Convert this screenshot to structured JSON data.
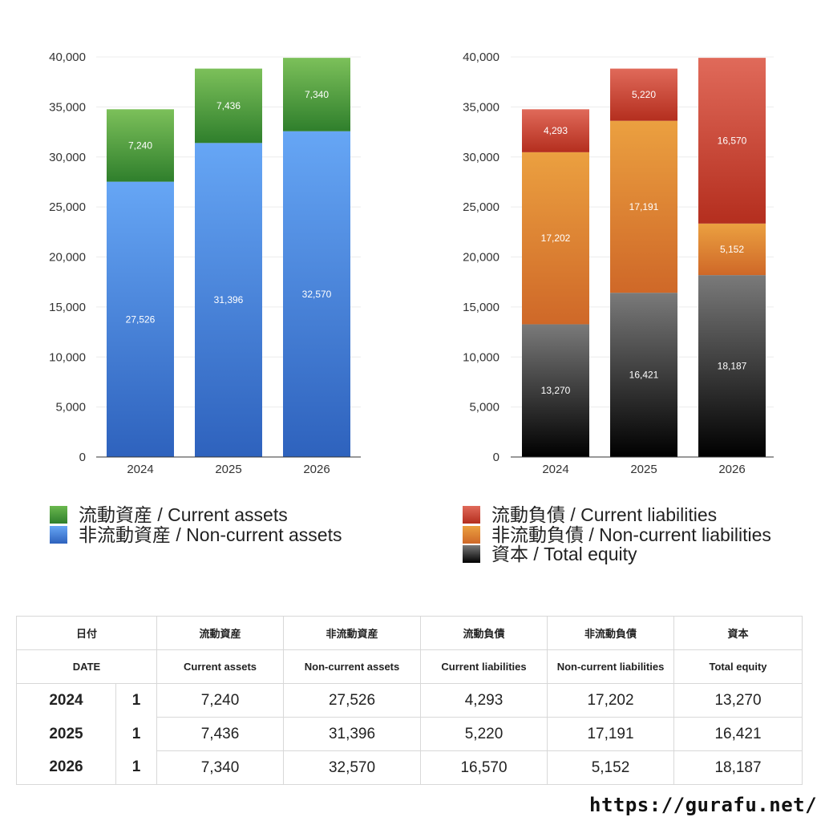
{
  "chart_data": [
    {
      "type": "bar",
      "stacked": true,
      "categories": [
        "2024",
        "2025",
        "2026"
      ],
      "series": [
        {
          "name": "非流動資産 / Non-current assets",
          "values": [
            27526,
            31396,
            32570
          ],
          "color": "#4a86d8"
        },
        {
          "name": "流動資産 / Current assets",
          "values": [
            7240,
            7436,
            7340
          ],
          "color": "#4a9a3c"
        }
      ],
      "ylim": [
        0,
        40000
      ],
      "yticks": [
        "0",
        "5,000",
        "10,000",
        "15,000",
        "20,000",
        "25,000",
        "30,000",
        "35,000",
        "40,000"
      ],
      "grid": true,
      "legend": "bottom",
      "title": "",
      "xlabel": "",
      "ylabel": ""
    },
    {
      "type": "bar",
      "stacked": true,
      "categories": [
        "2024",
        "2025",
        "2026"
      ],
      "series": [
        {
          "name": "資本 / Total equity",
          "values": [
            13270,
            16421,
            18187
          ],
          "color": "#3a3a3a"
        },
        {
          "name": "非流動負債 / Non-current liabilities",
          "values": [
            17202,
            17191,
            5152
          ],
          "color": "#e0822e"
        },
        {
          "name": "流動負債 / Current liabilities",
          "values": [
            4293,
            5220,
            16570
          ],
          "color": "#d0483a"
        }
      ],
      "ylim": [
        0,
        40000
      ],
      "yticks": [
        "0",
        "5,000",
        "10,000",
        "15,000",
        "20,000",
        "25,000",
        "30,000",
        "35,000",
        "40,000"
      ],
      "grid": true,
      "legend": "bottom",
      "title": "",
      "xlabel": "",
      "ylabel": ""
    }
  ],
  "legend_left": [
    {
      "label": "流動資産 / Current assets",
      "color": "#4a9a3c"
    },
    {
      "label": "非流動資産 / Non-current assets",
      "color": "#4a86d8"
    }
  ],
  "legend_right": [
    {
      "label": "流動負債 / Current liabilities",
      "color": "#d0483a"
    },
    {
      "label": "非流動負債 / Non-current liabilities",
      "color": "#e0822e"
    },
    {
      "label": "資本 / Total equity",
      "color": "#3a3a3a"
    }
  ],
  "table": {
    "header_jp": [
      "日付",
      "流動資産",
      "非流動資産",
      "流動負債",
      "非流動負債",
      "資本"
    ],
    "header_en": [
      "DATE",
      "Current assets",
      "Non-current assets",
      "Current liabilities",
      "Non-current liabilities",
      "Total equity"
    ],
    "rows": [
      {
        "year": "2024",
        "month": "1",
        "values": [
          "7,240",
          "27,526",
          "4,293",
          "17,202",
          "13,270"
        ]
      },
      {
        "year": "2025",
        "month": "1",
        "values": [
          "7,436",
          "31,396",
          "5,220",
          "17,191",
          "16,421"
        ]
      },
      {
        "year": "2026",
        "month": "1",
        "values": [
          "7,340",
          "32,570",
          "16,570",
          "5,152",
          "18,187"
        ]
      }
    ]
  },
  "footer": {
    "url": "https://gurafu.net/"
  }
}
